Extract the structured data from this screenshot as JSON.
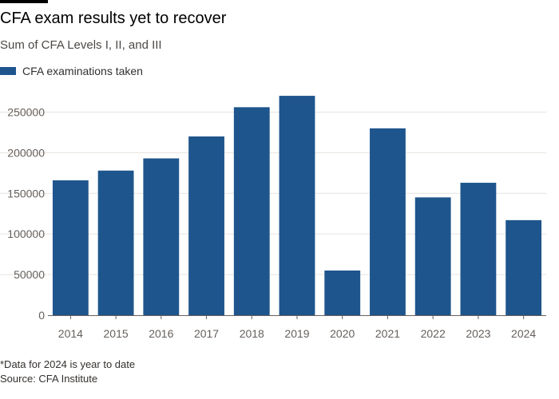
{
  "title": "CFA exam results yet to recover",
  "subtitle": "Sum of CFA Levels I, II, and III",
  "footnote": "*Data for 2024 is year to date",
  "source": "Source: CFA Institute",
  "colors": {
    "bar": "#1e558c",
    "grid": "#e6e3df",
    "axis": "#66605c",
    "text": "#66605c",
    "accent_bar": "#000000"
  },
  "legend": {
    "items": [
      {
        "label": "CFA examinations taken",
        "color": "#1e558c"
      }
    ],
    "placement": "top-left"
  },
  "chart_data": {
    "type": "bar",
    "categories": [
      "2014",
      "2015",
      "2016",
      "2017",
      "2018",
      "2019",
      "2020",
      "2021",
      "2022",
      "2023",
      "2024"
    ],
    "series": [
      {
        "name": "CFA examinations taken",
        "values": [
          166000,
          178000,
          193000,
          220000,
          256000,
          270000,
          55000,
          230000,
          145000,
          163000,
          117000
        ]
      }
    ],
    "ylim": [
      0,
      275000
    ],
    "yticks": [
      0,
      50000,
      100000,
      150000,
      200000,
      250000
    ],
    "ytick_labels": [
      "0",
      "50000",
      "100000",
      "150000",
      "200000",
      "250000"
    ],
    "grid": true,
    "xlabel": "",
    "ylabel": ""
  }
}
